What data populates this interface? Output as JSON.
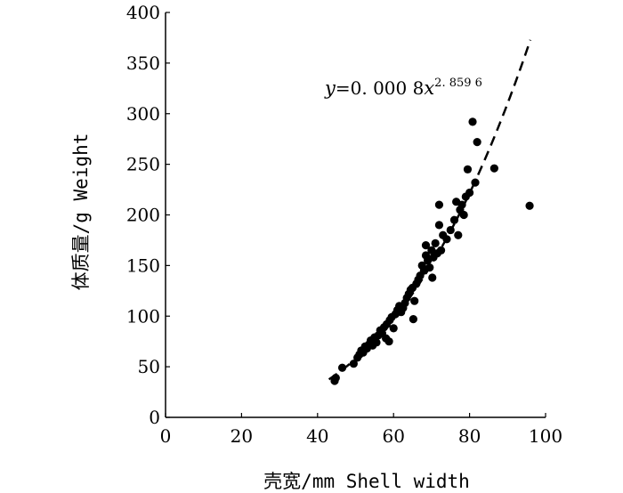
{
  "chart_data": {
    "type": "scatter",
    "title": "",
    "xlabel": "壳宽/mm Shell width",
    "ylabel": "体质量/g Weight",
    "xlim": [
      0,
      100
    ],
    "ylim": [
      0,
      400
    ],
    "xticks": [
      0,
      20,
      40,
      60,
      80,
      100
    ],
    "yticks": [
      0,
      50,
      100,
      150,
      200,
      250,
      300,
      350,
      400
    ],
    "grid": false,
    "legend": "none",
    "marker_color": "#000000",
    "fit": {
      "style": "dashed",
      "x_range": [
        43,
        96
      ],
      "coefficient": 0.0008,
      "exponent": 2.8596,
      "label": {
        "y_var": "y",
        "eq_text": "=0. 000 8",
        "x_var": "x",
        "exponent_text": "2. 859 6"
      }
    },
    "points": [
      [
        44.5,
        36
      ],
      [
        44.8,
        39
      ],
      [
        46.5,
        49
      ],
      [
        49.5,
        53
      ],
      [
        50.5,
        59
      ],
      [
        51,
        62
      ],
      [
        51.5,
        66
      ],
      [
        52,
        64
      ],
      [
        52.5,
        70
      ],
      [
        53,
        68
      ],
      [
        53.5,
        72
      ],
      [
        54,
        76
      ],
      [
        54.5,
        71
      ],
      [
        55,
        79
      ],
      [
        55.5,
        74
      ],
      [
        56,
        81
      ],
      [
        56.5,
        86
      ],
      [
        57,
        83
      ],
      [
        57.5,
        89
      ],
      [
        58,
        78
      ],
      [
        58.2,
        92
      ],
      [
        58.8,
        75
      ],
      [
        59,
        96
      ],
      [
        59.5,
        99
      ],
      [
        60,
        88
      ],
      [
        60.5,
        102
      ],
      [
        61,
        106
      ],
      [
        61.5,
        110
      ],
      [
        62,
        104
      ],
      [
        62.5,
        108
      ],
      [
        63,
        113
      ],
      [
        63.5,
        118
      ],
      [
        64,
        122
      ],
      [
        64.5,
        126
      ],
      [
        65,
        128
      ],
      [
        65.2,
        97
      ],
      [
        65.5,
        115
      ],
      [
        66,
        132
      ],
      [
        66.5,
        136
      ],
      [
        67,
        140
      ],
      [
        67.5,
        150
      ],
      [
        68,
        145
      ],
      [
        68.5,
        160
      ],
      [
        68.5,
        170
      ],
      [
        69,
        155
      ],
      [
        69.5,
        148
      ],
      [
        70,
        165
      ],
      [
        70.2,
        138
      ],
      [
        70.5,
        158
      ],
      [
        71,
        172
      ],
      [
        71.5,
        162
      ],
      [
        72,
        190
      ],
      [
        72,
        210
      ],
      [
        72.5,
        165
      ],
      [
        73,
        180
      ],
      [
        74,
        176
      ],
      [
        75,
        185
      ],
      [
        76,
        195
      ],
      [
        76.5,
        213
      ],
      [
        77,
        180
      ],
      [
        77.5,
        205
      ],
      [
        78,
        210
      ],
      [
        78.5,
        200
      ],
      [
        79,
        218
      ],
      [
        79.5,
        245
      ],
      [
        80,
        222
      ],
      [
        80.8,
        292
      ],
      [
        81.5,
        232
      ],
      [
        82,
        272
      ],
      [
        86.5,
        246
      ],
      [
        95.8,
        209
      ]
    ]
  }
}
